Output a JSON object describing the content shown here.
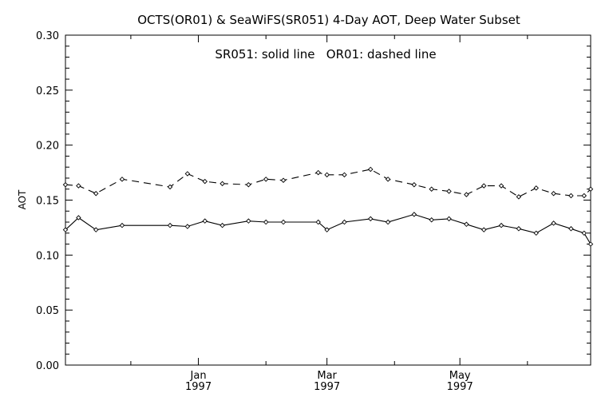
{
  "chart_data": {
    "type": "line",
    "title": "OCTS(OR01) & SeaWiFS(SR051) 4-Day AOT, Deep Water Subset",
    "annotation": "SR051: solid line   OR01: dashed line",
    "xlabel": "",
    "ylabel": "AOT",
    "ylim": [
      0.0,
      0.3
    ],
    "y_ticks": [
      "0.00",
      "0.05",
      "0.10",
      "0.15",
      "0.20",
      "0.25",
      "0.30"
    ],
    "x_range": [
      "1996-11-01",
      "1997-06-30"
    ],
    "x_major_ticks": [
      {
        "date": "1997-01-01",
        "label_month": "Jan",
        "label_year": "1997"
      },
      {
        "date": "1997-03-01",
        "label_month": "Mar",
        "label_year": "1997"
      },
      {
        "date": "1997-05-01",
        "label_month": "May",
        "label_year": "1997"
      }
    ],
    "x_minor_ticks": [
      "1996-12-01",
      "1997-02-01",
      "1997-04-01",
      "1997-06-01"
    ],
    "grid": false,
    "series": [
      {
        "name": "SR051",
        "style": "solid",
        "color": "#000000",
        "points": [
          {
            "x": "1996-11-01",
            "y": 0.123
          },
          {
            "x": "1996-11-07",
            "y": 0.134
          },
          {
            "x": "1996-11-15",
            "y": 0.123
          },
          {
            "x": "1996-11-27",
            "y": 0.127
          },
          {
            "x": "1996-12-19",
            "y": 0.127
          },
          {
            "x": "1996-12-27",
            "y": 0.126
          },
          {
            "x": "1997-01-04",
            "y": 0.131
          },
          {
            "x": "1997-01-12",
            "y": 0.127
          },
          {
            "x": "1997-01-24",
            "y": 0.131
          },
          {
            "x": "1997-02-01",
            "y": 0.13
          },
          {
            "x": "1997-02-09",
            "y": 0.13
          },
          {
            "x": "1997-02-25",
            "y": 0.13
          },
          {
            "x": "1997-03-01",
            "y": 0.123
          },
          {
            "x": "1997-03-09",
            "y": 0.13
          },
          {
            "x": "1997-03-21",
            "y": 0.133
          },
          {
            "x": "1997-03-29",
            "y": 0.13
          },
          {
            "x": "1997-04-10",
            "y": 0.137
          },
          {
            "x": "1997-04-18",
            "y": 0.132
          },
          {
            "x": "1997-04-26",
            "y": 0.133
          },
          {
            "x": "1997-05-04",
            "y": 0.128
          },
          {
            "x": "1997-05-12",
            "y": 0.123
          },
          {
            "x": "1997-05-20",
            "y": 0.127
          },
          {
            "x": "1997-05-28",
            "y": 0.124
          },
          {
            "x": "1997-06-05",
            "y": 0.12
          },
          {
            "x": "1997-06-13",
            "y": 0.129
          },
          {
            "x": "1997-06-21",
            "y": 0.124
          },
          {
            "x": "1997-06-27",
            "y": 0.12
          },
          {
            "x": "1997-06-30",
            "y": 0.11
          }
        ]
      },
      {
        "name": "OR01",
        "style": "dashed",
        "color": "#000000",
        "points": [
          {
            "x": "1996-11-01",
            "y": 0.164
          },
          {
            "x": "1996-11-07",
            "y": 0.163
          },
          {
            "x": "1996-11-15",
            "y": 0.156
          },
          {
            "x": "1996-11-27",
            "y": 0.169
          },
          {
            "x": "1996-12-19",
            "y": 0.162
          },
          {
            "x": "1996-12-27",
            "y": 0.174
          },
          {
            "x": "1997-01-04",
            "y": 0.167
          },
          {
            "x": "1997-01-12",
            "y": 0.165
          },
          {
            "x": "1997-01-24",
            "y": 0.164
          },
          {
            "x": "1997-02-01",
            "y": 0.169
          },
          {
            "x": "1997-02-09",
            "y": 0.168
          },
          {
            "x": "1997-02-25",
            "y": 0.175
          },
          {
            "x": "1997-03-01",
            "y": 0.173
          },
          {
            "x": "1997-03-09",
            "y": 0.173
          },
          {
            "x": "1997-03-21",
            "y": 0.178
          },
          {
            "x": "1997-03-29",
            "y": 0.169
          },
          {
            "x": "1997-04-10",
            "y": 0.164
          },
          {
            "x": "1997-04-18",
            "y": 0.16
          },
          {
            "x": "1997-04-26",
            "y": 0.158
          },
          {
            "x": "1997-05-04",
            "y": 0.155
          },
          {
            "x": "1997-05-12",
            "y": 0.163
          },
          {
            "x": "1997-05-20",
            "y": 0.163
          },
          {
            "x": "1997-05-28",
            "y": 0.153
          },
          {
            "x": "1997-06-05",
            "y": 0.161
          },
          {
            "x": "1997-06-13",
            "y": 0.156
          },
          {
            "x": "1997-06-21",
            "y": 0.154
          },
          {
            "x": "1997-06-27",
            "y": 0.154
          },
          {
            "x": "1997-06-30",
            "y": 0.16
          }
        ]
      }
    ]
  }
}
